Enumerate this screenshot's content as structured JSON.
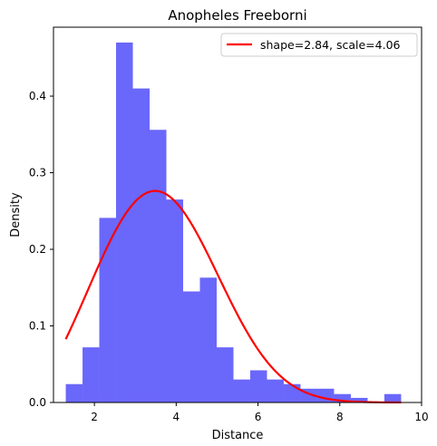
{
  "chart_data": {
    "type": "histogram",
    "title": "Anopheles Freeborni",
    "xlabel": "Distance",
    "ylabel": "Density",
    "xlim": [
      1.0,
      10.0
    ],
    "ylim": [
      0.0,
      0.49
    ],
    "xticks": [
      2,
      4,
      6,
      8,
      10
    ],
    "yticks": [
      0.0,
      0.1,
      0.2,
      0.3,
      0.4
    ],
    "grid": false,
    "histogram": {
      "color": "#6a67fb",
      "bin_edges": [
        1.3,
        1.71,
        2.12,
        2.53,
        2.94,
        3.35,
        3.76,
        4.17,
        4.58,
        4.99,
        5.4,
        5.81,
        6.22,
        6.63,
        7.04,
        7.45,
        7.86,
        8.27,
        8.68,
        9.09,
        9.5
      ],
      "densities": [
        0.024,
        0.072,
        0.241,
        0.47,
        0.41,
        0.356,
        0.265,
        0.145,
        0.163,
        0.072,
        0.03,
        0.042,
        0.03,
        0.024,
        0.018,
        0.018,
        0.011,
        0.006,
        0.0,
        0.011
      ]
    },
    "curve": {
      "name": "shape=2.84, scale=4.06",
      "color": "#ff0000",
      "distribution": "weibull",
      "shape": 2.84,
      "scale": 4.06,
      "x_range": [
        1.3,
        9.5
      ]
    },
    "legend": {
      "position": "top-right"
    }
  }
}
